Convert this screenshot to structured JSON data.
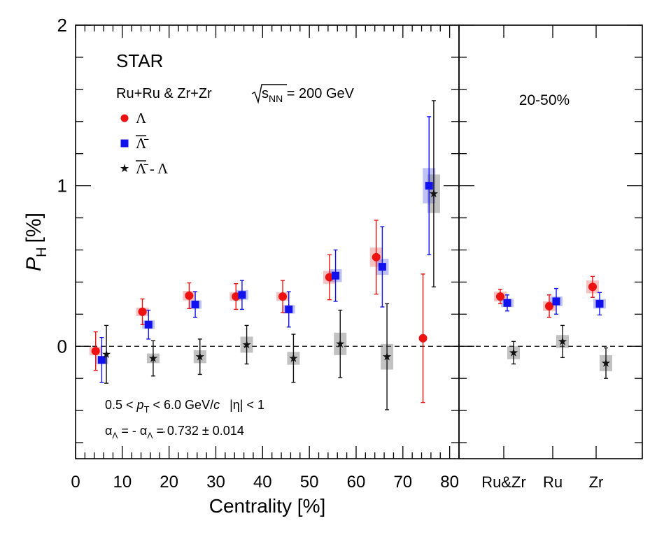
{
  "chart_data": [
    {
      "type": "scatter",
      "panel": "left",
      "ylabel": "P",
      "ylabel_sub": "H",
      "ylabel_unit": "[%]",
      "xlabel": "Centrality [%]",
      "xlim": [
        0,
        82
      ],
      "ylim": [
        -0.7,
        2.0
      ],
      "y_tick_labels": [
        "0",
        "1",
        "2"
      ],
      "y_tick_values": [
        0,
        1,
        2
      ],
      "x_tick_labels": [
        "0",
        "10",
        "20",
        "30",
        "40",
        "50",
        "60",
        "70",
        "80"
      ],
      "x_tick_values": [
        0,
        10,
        20,
        30,
        40,
        50,
        60,
        70,
        80
      ],
      "reference_line": 0,
      "annotations": {
        "experiment": "STAR",
        "system": "Ru+Ru & Zr+Zr",
        "energy_root": "s",
        "energy_sub": "NN",
        "energy_value": " = 200 GeV",
        "kin_pt_left": "0.5 < ",
        "kin_pt_p": "p",
        "kin_pt_sub": "T",
        "kin_pt_mid": " < 6.0 GeV/",
        "kin_pt_c": "c",
        "kin_eta": "|η| < 1",
        "alpha_a": "α",
        "alpha_a_sub": "Λ",
        "alpha_mid": " = - α",
        "alpha_b_sub": "Λ",
        "alpha_value": " = 0.732 ± 0.014"
      },
      "series": [
        {
          "name": "Λ",
          "color": "#ee1111",
          "marker": "circle",
          "points": [
            {
              "x": 4.3,
              "y": -0.03,
              "err": 0.12,
              "sys": 0.02
            },
            {
              "x": 14.3,
              "y": 0.215,
              "err": 0.08,
              "sys": 0.025
            },
            {
              "x": 24.3,
              "y": 0.315,
              "err": 0.08,
              "sys": 0.03
            },
            {
              "x": 34.3,
              "y": 0.31,
              "err": 0.08,
              "sys": 0.025
            },
            {
              "x": 44.3,
              "y": 0.31,
              "err": 0.1,
              "sys": 0.025
            },
            {
              "x": 54.3,
              "y": 0.43,
              "err": 0.14,
              "sys": 0.04
            },
            {
              "x": 64.3,
              "y": 0.555,
              "err": 0.23,
              "sys": 0.06
            },
            {
              "x": 74.3,
              "y": 0.05,
              "err": 0.4,
              "sys": 0.0
            }
          ]
        },
        {
          "name": "Λ̄",
          "color": "#1111ee",
          "marker": "square",
          "points": [
            {
              "x": 5.6,
              "y": -0.085,
              "err": 0.14,
              "sys": 0.02
            },
            {
              "x": 15.6,
              "y": 0.135,
              "err": 0.09,
              "sys": 0.02
            },
            {
              "x": 25.6,
              "y": 0.26,
              "err": 0.08,
              "sys": 0.025
            },
            {
              "x": 35.6,
              "y": 0.32,
              "err": 0.09,
              "sys": 0.03
            },
            {
              "x": 45.6,
              "y": 0.23,
              "err": 0.11,
              "sys": 0.025
            },
            {
              "x": 55.6,
              "y": 0.44,
              "err": 0.16,
              "sys": 0.04
            },
            {
              "x": 65.6,
              "y": 0.495,
              "err": 0.25,
              "sys": 0.05
            },
            {
              "x": 75.6,
              "y": 1.0,
              "err": 0.43,
              "sys": 0.11
            }
          ]
        },
        {
          "name": "Λ̄ - Λ",
          "color": "#111111",
          "marker": "star",
          "points": [
            {
              "x": 6.6,
              "y": -0.05,
              "err": 0.18,
              "sys": 0.0
            },
            {
              "x": 16.6,
              "y": -0.075,
              "err": 0.11,
              "sys": 0.03
            },
            {
              "x": 26.6,
              "y": -0.065,
              "err": 0.11,
              "sys": 0.04
            },
            {
              "x": 36.6,
              "y": 0.01,
              "err": 0.12,
              "sys": 0.05
            },
            {
              "x": 46.6,
              "y": -0.075,
              "err": 0.15,
              "sys": 0.04
            },
            {
              "x": 56.6,
              "y": 0.015,
              "err": 0.21,
              "sys": 0.07
            },
            {
              "x": 66.6,
              "y": -0.065,
              "err": 0.33,
              "sys": 0.08
            },
            {
              "x": 76.6,
              "y": 0.95,
              "err": 0.58,
              "sys": 0.12
            }
          ]
        }
      ]
    },
    {
      "type": "scatter",
      "panel": "right",
      "title": "20-50%",
      "categories": [
        "Ru&Zr",
        "Ru",
        "Zr"
      ],
      "ylim": [
        -0.7,
        2.0
      ],
      "reference_line": 0,
      "series": [
        {
          "name": "Λ",
          "color": "#ee1111",
          "marker": "circle",
          "points": [
            {
              "category": "Ru&Zr",
              "y": 0.31,
              "err": 0.045,
              "sys": 0.03
            },
            {
              "category": "Ru",
              "y": 0.25,
              "err": 0.07,
              "sys": 0.03
            },
            {
              "category": "Zr",
              "y": 0.37,
              "err": 0.065,
              "sys": 0.04
            }
          ]
        },
        {
          "name": "Λ̄",
          "color": "#1111ee",
          "marker": "square",
          "points": [
            {
              "category": "Ru&Zr",
              "y": 0.27,
              "err": 0.05,
              "sys": 0.025
            },
            {
              "category": "Ru",
              "y": 0.28,
              "err": 0.08,
              "sys": 0.03
            },
            {
              "category": "Zr",
              "y": 0.265,
              "err": 0.07,
              "sys": 0.03
            }
          ]
        },
        {
          "name": "Λ̄ - Λ",
          "color": "#111111",
          "marker": "star",
          "points": [
            {
              "category": "Ru&Zr",
              "y": -0.04,
              "err": 0.07,
              "sys": 0.04
            },
            {
              "category": "Ru",
              "y": 0.03,
              "err": 0.1,
              "sys": 0.04
            },
            {
              "category": "Zr",
              "y": -0.105,
              "err": 0.095,
              "sys": 0.05
            }
          ]
        }
      ]
    }
  ]
}
